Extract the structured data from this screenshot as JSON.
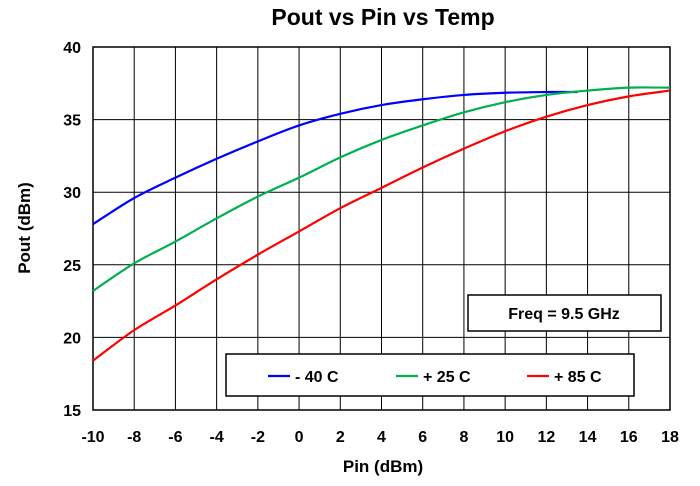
{
  "chart_data": {
    "type": "line",
    "title": "Pout vs Pin vs Temp",
    "xlabel": "Pin (dBm)",
    "ylabel": "Pout (dBm)",
    "xlim": [
      -10,
      18
    ],
    "ylim": [
      15,
      40
    ],
    "xticks": [
      -10,
      -8,
      -6,
      -4,
      -2,
      0,
      2,
      4,
      6,
      8,
      10,
      12,
      14,
      16,
      18
    ],
    "yticks": [
      15,
      20,
      25,
      30,
      35,
      40
    ],
    "grid": true,
    "annotation": "Freq = 9.5 GHz",
    "legend_position": "bottom-right",
    "series": [
      {
        "name": "- 40 C",
        "color": "#0000ff",
        "x": [
          -10,
          -8,
          -6,
          -4,
          -2,
          0,
          2,
          4,
          6,
          8,
          10,
          12,
          13.5
        ],
        "y": [
          27.8,
          29.6,
          31.0,
          32.3,
          33.5,
          34.6,
          35.4,
          36.0,
          36.4,
          36.7,
          36.85,
          36.9,
          36.9
        ]
      },
      {
        "name": "+ 25 C",
        "color": "#00b050",
        "x": [
          -10,
          -8,
          -6,
          -4,
          -2,
          0,
          2,
          4,
          6,
          8,
          10,
          12,
          14,
          16,
          18
        ],
        "y": [
          23.2,
          25.1,
          26.6,
          28.2,
          29.7,
          31.0,
          32.4,
          33.6,
          34.6,
          35.5,
          36.2,
          36.7,
          37.0,
          37.2,
          37.2
        ]
      },
      {
        "name": "+ 85 C",
        "color": "#ff0000",
        "x": [
          -10,
          -8,
          -6,
          -4,
          -2,
          0,
          2,
          4,
          6,
          8,
          10,
          12,
          14,
          16,
          18
        ],
        "y": [
          18.4,
          20.5,
          22.2,
          24.0,
          25.7,
          27.3,
          28.9,
          30.3,
          31.7,
          33.0,
          34.2,
          35.2,
          36.0,
          36.6,
          37.0
        ]
      }
    ]
  }
}
